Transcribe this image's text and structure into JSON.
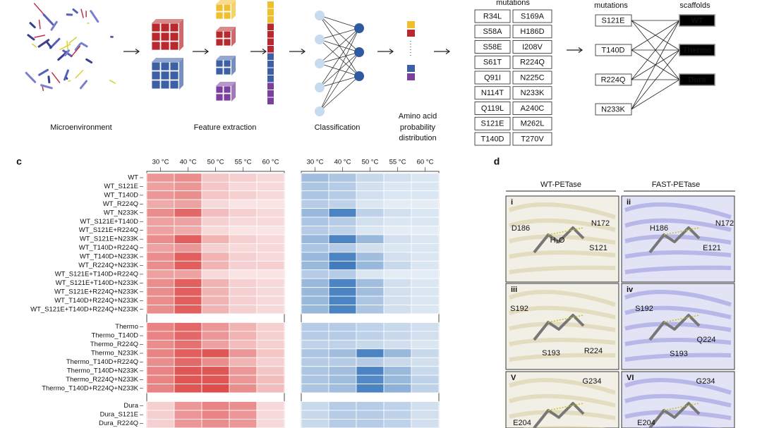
{
  "panel_a": {
    "labels": [
      "Microenvironment",
      "Feature extraction",
      "Classification"
    ],
    "distribution_label": [
      "Amino acid",
      "probability",
      "distribution"
    ],
    "mutations_header": "mutations",
    "mutations": [
      [
        "R34L",
        "S169A"
      ],
      [
        "S58A",
        "H186D"
      ],
      [
        "S58E",
        "I208V"
      ],
      [
        "S61T",
        "R224Q"
      ],
      [
        "Q91I",
        "N225C"
      ],
      [
        "N114T",
        "N233K"
      ],
      [
        "Q119L",
        "A240C"
      ],
      [
        "S121E",
        "M262L"
      ],
      [
        "T140D",
        "T270V"
      ]
    ],
    "selected_header": "mutations",
    "selected": [
      "S121E",
      "T140D",
      "R224Q",
      "N233K"
    ],
    "scaffolds_header": "scaffolds",
    "scaffolds": [
      "WT",
      "Thermo",
      "Dura"
    ]
  },
  "panel_c": {
    "letter": "c",
    "temperatures": [
      "30 °C",
      "40 °C",
      "50 °C",
      "55 °C",
      "60 °C"
    ],
    "rows": [
      "WT",
      "WT_S121E",
      "WT_T140D",
      "WT_R224Q",
      "WT_N233K",
      "WT_S121E+T140D",
      "WT_S121E+R224Q",
      "WT_S121E+N233K",
      "WT_T140D+R224Q",
      "WT_T140D+N233K",
      "WT_R224Q+N233K",
      "WT_S121E+T140D+R224Q",
      "WT_S121E+T140D+N233K",
      "WT_S121E+R224Q+N233K",
      "WT_T140D+R224Q+N233K",
      "WT_S121E+T140D+R224Q+N233K",
      null,
      "Thermo",
      "Thermo_T140D",
      "Thermo_R224Q",
      "Thermo_N233K",
      "Thermo_T140D+R224Q",
      "Thermo_T140D+N233K",
      "Thermo_R224Q+N233K",
      "Thermo_T140D+R224Q+N233K",
      null,
      "Dura",
      "Dura_S121E",
      "Dura_R224Q"
    ],
    "heatmaps": [
      {
        "colors": [
          "#fbecec",
          "#d9302e"
        ],
        "values": [
          [
            0.45,
            0.5,
            0.2,
            0.15,
            0.1
          ],
          [
            0.4,
            0.45,
            0.2,
            0.1,
            0.1
          ],
          [
            0.45,
            0.5,
            0.2,
            0.15,
            0.1
          ],
          [
            0.35,
            0.4,
            0.1,
            0.05,
            0.05
          ],
          [
            0.5,
            0.7,
            0.25,
            0.15,
            0.1
          ],
          [
            0.4,
            0.4,
            0.15,
            0.1,
            0.1
          ],
          [
            0.4,
            0.35,
            0.1,
            0.05,
            0.05
          ],
          [
            0.5,
            0.75,
            0.3,
            0.15,
            0.1
          ],
          [
            0.4,
            0.45,
            0.15,
            0.1,
            0.1
          ],
          [
            0.5,
            0.75,
            0.3,
            0.15,
            0.1
          ],
          [
            0.5,
            0.75,
            0.3,
            0.15,
            0.15
          ],
          [
            0.4,
            0.4,
            0.1,
            0.05,
            0.05
          ],
          [
            0.5,
            0.75,
            0.3,
            0.15,
            0.1
          ],
          [
            0.5,
            0.75,
            0.3,
            0.15,
            0.1
          ],
          [
            0.5,
            0.75,
            0.3,
            0.15,
            0.1
          ],
          [
            0.5,
            0.75,
            0.3,
            0.15,
            0.1
          ],
          null,
          [
            0.55,
            0.7,
            0.45,
            0.3,
            0.15
          ],
          [
            0.55,
            0.7,
            0.45,
            0.3,
            0.15
          ],
          [
            0.5,
            0.65,
            0.4,
            0.25,
            0.15
          ],
          [
            0.55,
            0.75,
            0.8,
            0.45,
            0.2
          ],
          [
            0.5,
            0.7,
            0.5,
            0.3,
            0.15
          ],
          [
            0.55,
            0.8,
            0.8,
            0.45,
            0.2
          ],
          [
            0.55,
            0.8,
            0.8,
            0.45,
            0.25
          ],
          [
            0.55,
            0.8,
            0.85,
            0.5,
            0.25
          ],
          null,
          [
            0.15,
            0.45,
            0.55,
            0.5,
            0.1
          ],
          [
            0.15,
            0.45,
            0.55,
            0.45,
            0.1
          ],
          [
            0.15,
            0.45,
            0.5,
            0.45,
            0.1
          ]
        ]
      },
      {
        "colors": [
          "#eef3f9",
          "#2f6fb8"
        ],
        "values": [
          [
            0.4,
            0.35,
            0.2,
            0.15,
            0.1
          ],
          [
            0.35,
            0.3,
            0.15,
            0.1,
            0.1
          ],
          [
            0.35,
            0.3,
            0.15,
            0.1,
            0.1
          ],
          [
            0.3,
            0.25,
            0.1,
            0.05,
            0.05
          ],
          [
            0.45,
            0.85,
            0.25,
            0.15,
            0.1
          ],
          [
            0.35,
            0.3,
            0.15,
            0.1,
            0.1
          ],
          [
            0.3,
            0.25,
            0.1,
            0.05,
            0.05
          ],
          [
            0.45,
            0.85,
            0.45,
            0.15,
            0.1
          ],
          [
            0.35,
            0.3,
            0.15,
            0.1,
            0.1
          ],
          [
            0.45,
            0.85,
            0.4,
            0.15,
            0.1
          ],
          [
            0.45,
            0.9,
            0.45,
            0.2,
            0.1
          ],
          [
            0.3,
            0.3,
            0.1,
            0.05,
            0.05
          ],
          [
            0.45,
            0.85,
            0.4,
            0.15,
            0.1
          ],
          [
            0.45,
            0.85,
            0.4,
            0.15,
            0.1
          ],
          [
            0.45,
            0.85,
            0.35,
            0.15,
            0.1
          ],
          [
            0.45,
            0.85,
            0.35,
            0.15,
            0.1
          ],
          null,
          [
            0.3,
            0.3,
            0.25,
            0.2,
            0.15
          ],
          [
            0.3,
            0.3,
            0.25,
            0.2,
            0.15
          ],
          [
            0.25,
            0.25,
            0.2,
            0.15,
            0.1
          ],
          [
            0.35,
            0.4,
            0.85,
            0.45,
            0.2
          ],
          [
            0.3,
            0.3,
            0.3,
            0.2,
            0.15
          ],
          [
            0.35,
            0.4,
            0.85,
            0.45,
            0.2
          ],
          [
            0.35,
            0.4,
            0.8,
            0.45,
            0.25
          ],
          [
            0.35,
            0.4,
            0.85,
            0.5,
            0.25
          ],
          null,
          [
            0.2,
            0.3,
            0.3,
            0.25,
            0.15
          ],
          [
            0.2,
            0.3,
            0.3,
            0.25,
            0.15
          ],
          [
            0.2,
            0.3,
            0.3,
            0.25,
            0.15
          ]
        ]
      }
    ]
  },
  "panel_d": {
    "letter": "d",
    "headers": [
      "WT-PETase",
      "FAST-PETase"
    ],
    "panels": [
      {
        "id": "i",
        "labels": [
          "D186",
          "H₂O",
          "N172",
          "S121"
        ]
      },
      {
        "id": "ii",
        "labels": [
          "H186",
          "N172",
          "E121"
        ]
      },
      {
        "id": "iii",
        "labels": [
          "S192",
          "S193",
          "R224"
        ]
      },
      {
        "id": "iv",
        "labels": [
          "S192",
          "Q224",
          "S193"
        ]
      },
      {
        "id": "V",
        "labels": [
          "G234",
          "E204"
        ]
      },
      {
        "id": "VI",
        "labels": [
          "G234",
          "E204"
        ]
      }
    ]
  }
}
